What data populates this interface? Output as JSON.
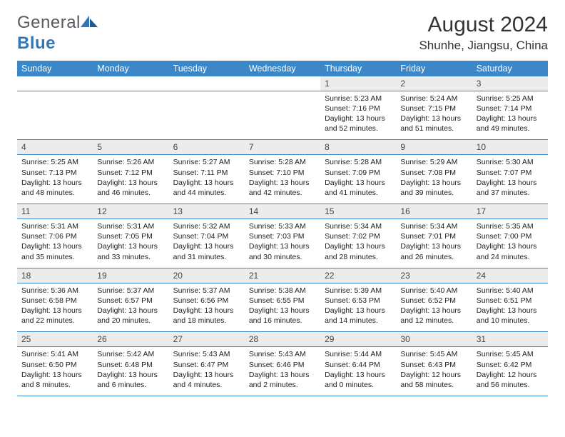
{
  "brand": {
    "word1": "General",
    "word2": "Blue",
    "color_blue": "#2f77b6",
    "color_gray": "#555b61"
  },
  "title": "August 2024",
  "location": "Shunhe, Jiangsu, China",
  "header_bg": "#3b87c8",
  "header_text_color": "#ffffff",
  "daynum_bg": "#ececec",
  "cell_border": "#3b87c8",
  "font_family": "Arial",
  "weekdays": [
    "Sunday",
    "Monday",
    "Tuesday",
    "Wednesday",
    "Thursday",
    "Friday",
    "Saturday"
  ],
  "weeks": [
    [
      null,
      null,
      null,
      null,
      {
        "d": "1",
        "sunrise": "5:23 AM",
        "sunset": "7:16 PM",
        "daylight": "13 hours and 52 minutes."
      },
      {
        "d": "2",
        "sunrise": "5:24 AM",
        "sunset": "7:15 PM",
        "daylight": "13 hours and 51 minutes."
      },
      {
        "d": "3",
        "sunrise": "5:25 AM",
        "sunset": "7:14 PM",
        "daylight": "13 hours and 49 minutes."
      }
    ],
    [
      {
        "d": "4",
        "sunrise": "5:25 AM",
        "sunset": "7:13 PM",
        "daylight": "13 hours and 48 minutes."
      },
      {
        "d": "5",
        "sunrise": "5:26 AM",
        "sunset": "7:12 PM",
        "daylight": "13 hours and 46 minutes."
      },
      {
        "d": "6",
        "sunrise": "5:27 AM",
        "sunset": "7:11 PM",
        "daylight": "13 hours and 44 minutes."
      },
      {
        "d": "7",
        "sunrise": "5:28 AM",
        "sunset": "7:10 PM",
        "daylight": "13 hours and 42 minutes."
      },
      {
        "d": "8",
        "sunrise": "5:28 AM",
        "sunset": "7:09 PM",
        "daylight": "13 hours and 41 minutes."
      },
      {
        "d": "9",
        "sunrise": "5:29 AM",
        "sunset": "7:08 PM",
        "daylight": "13 hours and 39 minutes."
      },
      {
        "d": "10",
        "sunrise": "5:30 AM",
        "sunset": "7:07 PM",
        "daylight": "13 hours and 37 minutes."
      }
    ],
    [
      {
        "d": "11",
        "sunrise": "5:31 AM",
        "sunset": "7:06 PM",
        "daylight": "13 hours and 35 minutes."
      },
      {
        "d": "12",
        "sunrise": "5:31 AM",
        "sunset": "7:05 PM",
        "daylight": "13 hours and 33 minutes."
      },
      {
        "d": "13",
        "sunrise": "5:32 AM",
        "sunset": "7:04 PM",
        "daylight": "13 hours and 31 minutes."
      },
      {
        "d": "14",
        "sunrise": "5:33 AM",
        "sunset": "7:03 PM",
        "daylight": "13 hours and 30 minutes."
      },
      {
        "d": "15",
        "sunrise": "5:34 AM",
        "sunset": "7:02 PM",
        "daylight": "13 hours and 28 minutes."
      },
      {
        "d": "16",
        "sunrise": "5:34 AM",
        "sunset": "7:01 PM",
        "daylight": "13 hours and 26 minutes."
      },
      {
        "d": "17",
        "sunrise": "5:35 AM",
        "sunset": "7:00 PM",
        "daylight": "13 hours and 24 minutes."
      }
    ],
    [
      {
        "d": "18",
        "sunrise": "5:36 AM",
        "sunset": "6:58 PM",
        "daylight": "13 hours and 22 minutes."
      },
      {
        "d": "19",
        "sunrise": "5:37 AM",
        "sunset": "6:57 PM",
        "daylight": "13 hours and 20 minutes."
      },
      {
        "d": "20",
        "sunrise": "5:37 AM",
        "sunset": "6:56 PM",
        "daylight": "13 hours and 18 minutes."
      },
      {
        "d": "21",
        "sunrise": "5:38 AM",
        "sunset": "6:55 PM",
        "daylight": "13 hours and 16 minutes."
      },
      {
        "d": "22",
        "sunrise": "5:39 AM",
        "sunset": "6:53 PM",
        "daylight": "13 hours and 14 minutes."
      },
      {
        "d": "23",
        "sunrise": "5:40 AM",
        "sunset": "6:52 PM",
        "daylight": "13 hours and 12 minutes."
      },
      {
        "d": "24",
        "sunrise": "5:40 AM",
        "sunset": "6:51 PM",
        "daylight": "13 hours and 10 minutes."
      }
    ],
    [
      {
        "d": "25",
        "sunrise": "5:41 AM",
        "sunset": "6:50 PM",
        "daylight": "13 hours and 8 minutes."
      },
      {
        "d": "26",
        "sunrise": "5:42 AM",
        "sunset": "6:48 PM",
        "daylight": "13 hours and 6 minutes."
      },
      {
        "d": "27",
        "sunrise": "5:43 AM",
        "sunset": "6:47 PM",
        "daylight": "13 hours and 4 minutes."
      },
      {
        "d": "28",
        "sunrise": "5:43 AM",
        "sunset": "6:46 PM",
        "daylight": "13 hours and 2 minutes."
      },
      {
        "d": "29",
        "sunrise": "5:44 AM",
        "sunset": "6:44 PM",
        "daylight": "13 hours and 0 minutes."
      },
      {
        "d": "30",
        "sunrise": "5:45 AM",
        "sunset": "6:43 PM",
        "daylight": "12 hours and 58 minutes."
      },
      {
        "d": "31",
        "sunrise": "5:45 AM",
        "sunset": "6:42 PM",
        "daylight": "12 hours and 56 minutes."
      }
    ]
  ],
  "labels": {
    "sunrise": "Sunrise:",
    "sunset": "Sunset:",
    "daylight": "Daylight:"
  }
}
